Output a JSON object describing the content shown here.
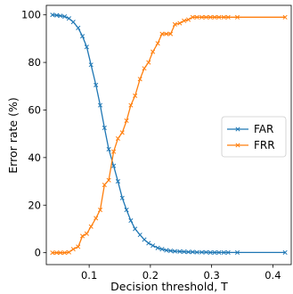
{
  "chart_data": {
    "type": "line",
    "title": "",
    "xlabel": "Decision threshold, T",
    "ylabel": "Error rate (%)",
    "xlim": [
      0.03,
      0.43
    ],
    "ylim": [
      -5,
      104
    ],
    "xticks": [
      0.1,
      0.2,
      0.3,
      0.4
    ],
    "xtick_labels": [
      "0.1",
      "0.2",
      "0.3",
      "0.4"
    ],
    "yticks": [
      0,
      20,
      40,
      60,
      80,
      100
    ],
    "ytick_labels": [
      "0",
      "20",
      "40",
      "60",
      "80",
      "100"
    ],
    "grid": false,
    "legend_position": "center-right",
    "marker": "x",
    "series": [
      {
        "name": "FAR",
        "color": "#1f77b4",
        "x": [
          0.04,
          0.047,
          0.053,
          0.06,
          0.067,
          0.074,
          0.082,
          0.089,
          0.096,
          0.103,
          0.111,
          0.118,
          0.125,
          0.132,
          0.14,
          0.147,
          0.154,
          0.161,
          0.168,
          0.175,
          0.183,
          0.19,
          0.197,
          0.204,
          0.212,
          0.219,
          0.226,
          0.233,
          0.24,
          0.248,
          0.255,
          0.262,
          0.269,
          0.276,
          0.284,
          0.291,
          0.298,
          0.305,
          0.312,
          0.32,
          0.327,
          0.342,
          0.42
        ],
        "y": [
          100,
          99.8,
          99.6,
          99.3,
          98.5,
          97,
          94.5,
          91,
          86.5,
          79,
          70.5,
          62,
          52.5,
          43.5,
          36.5,
          30,
          23,
          18,
          13.5,
          10,
          7.5,
          5.5,
          4,
          3,
          2,
          1.5,
          1,
          0.8,
          0.6,
          0.5,
          0.4,
          0.3,
          0.3,
          0.2,
          0.2,
          0.2,
          0.1,
          0.1,
          0.1,
          0.1,
          0.1,
          0.1,
          0.1
        ]
      },
      {
        "name": "FRR",
        "color": "#ff7f0e",
        "x": [
          0.04,
          0.047,
          0.053,
          0.06,
          0.067,
          0.074,
          0.082,
          0.089,
          0.096,
          0.103,
          0.111,
          0.118,
          0.125,
          0.132,
          0.14,
          0.147,
          0.154,
          0.161,
          0.168,
          0.175,
          0.183,
          0.19,
          0.197,
          0.204,
          0.212,
          0.219,
          0.226,
          0.233,
          0.24,
          0.248,
          0.255,
          0.262,
          0.269,
          0.276,
          0.284,
          0.291,
          0.298,
          0.305,
          0.312,
          0.32,
          0.327,
          0.342,
          0.42
        ],
        "y": [
          0,
          0,
          0,
          0,
          0.2,
          1.5,
          2.5,
          7,
          8,
          11,
          14.5,
          18,
          28.5,
          30.5,
          42.5,
          48,
          50.5,
          55.5,
          62,
          66,
          73,
          77.5,
          80,
          84.5,
          88,
          92,
          92,
          92,
          96,
          96.5,
          97.5,
          98,
          99,
          99,
          99,
          99,
          99,
          99,
          99,
          99,
          99,
          99,
          99
        ]
      }
    ]
  }
}
